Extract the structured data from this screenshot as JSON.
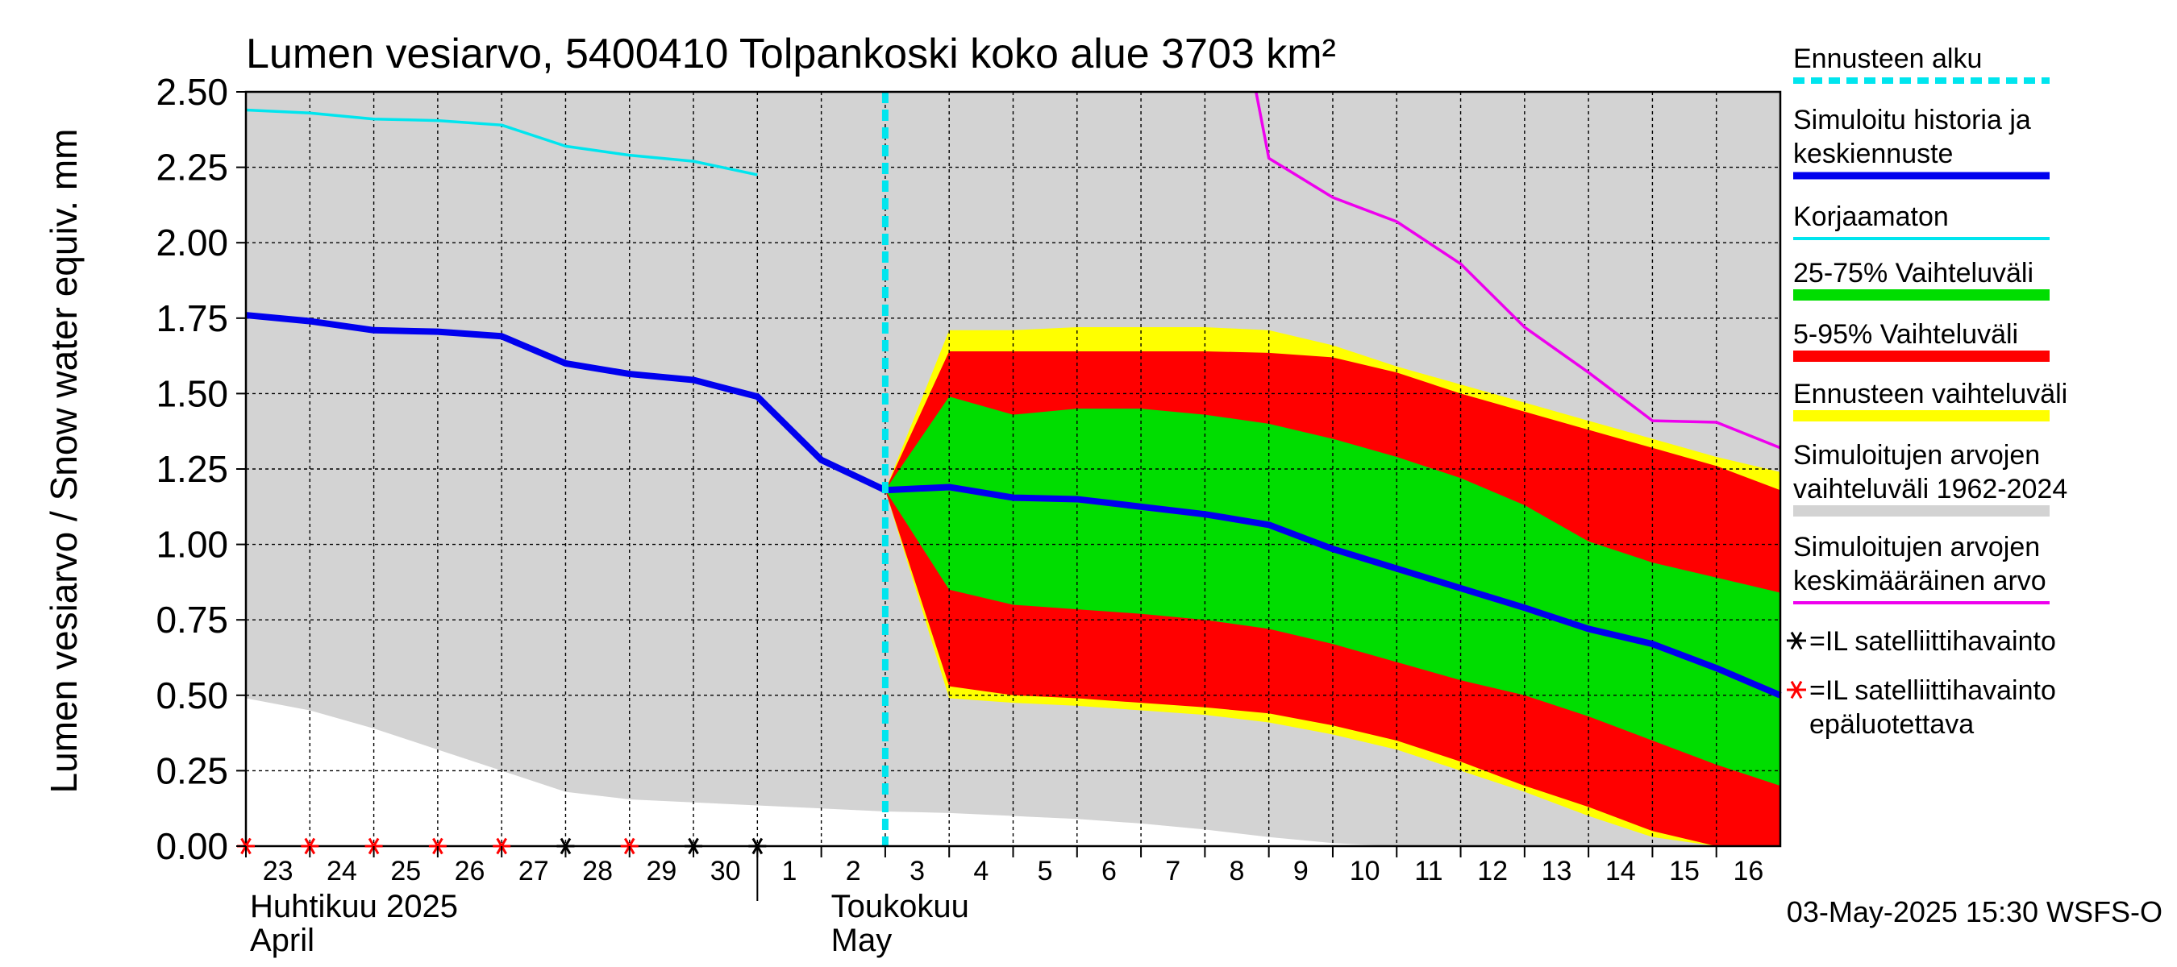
{
  "chart_data": {
    "type": "area",
    "title": "Lumen vesiarvo, 5400410 Tolpankoski koko alue 3703 km²",
    "ylabel": "Lumen vesiarvo / Snow water equiv.    mm",
    "ylim": [
      0,
      2.5
    ],
    "y_ticks": [
      "0.00",
      "0.25",
      "0.50",
      "0.75",
      "1.00",
      "1.25",
      "1.50",
      "1.75",
      "2.00",
      "2.25",
      "2.50"
    ],
    "x_tick_labels": [
      "23",
      "24",
      "25",
      "26",
      "27",
      "28",
      "29",
      "30",
      "1",
      "2",
      "3",
      "4",
      "5",
      "6",
      "7",
      "8",
      "9",
      "10",
      "11",
      "12",
      "13",
      "14",
      "15",
      "16"
    ],
    "month_labels": [
      {
        "line1": "Huhtikuu  2025",
        "line2": "April"
      },
      {
        "line1": "Toukokuu",
        "line2": "May"
      }
    ],
    "forecast_start_day": 10,
    "grid": true,
    "timestamp": "03-May-2025 15:30 WSFS-O",
    "colors": {
      "history_range": "#d3d3d3",
      "forecast_range": "#ffff00",
      "range_5_95": "#ff0000",
      "range_25_75": "#00dd00",
      "simulated": "#0000ee",
      "uncorrected": "#00e5ee",
      "mean": "#ee00ee",
      "forecast_start": "#00e5ee"
    },
    "legend": [
      {
        "lines": [
          "Ennusteen alku"
        ],
        "color": "#00e5ee",
        "style": "dashed"
      },
      {
        "lines": [
          "Simuloitu historia ja",
          "keskiennuste"
        ],
        "color": "#0000ee",
        "style": "thick"
      },
      {
        "lines": [
          "Korjaamaton"
        ],
        "color": "#00e5ee",
        "style": "line"
      },
      {
        "lines": [
          "25-75% Vaihteluväli"
        ],
        "color": "#00dd00",
        "style": "band"
      },
      {
        "lines": [
          "5-95% Vaihteluväli"
        ],
        "color": "#ff0000",
        "style": "band"
      },
      {
        "lines": [
          "Ennusteen vaihteluväli"
        ],
        "color": "#ffff00",
        "style": "band"
      },
      {
        "lines": [
          "Simuloitujen arvojen",
          "vaihteluväli 1962-2024"
        ],
        "color": "#d3d3d3",
        "style": "band"
      },
      {
        "lines": [
          "Simuloitujen arvojen",
          "keskimääräinen arvo"
        ],
        "color": "#ee00ee",
        "style": "line"
      },
      {
        "lines": [
          "=IL satelliittihavainto"
        ],
        "color": "#000000",
        "style": "marker"
      },
      {
        "lines": [
          "=IL satelliittihavainto",
          "epäluotettava"
        ],
        "color": "#ff0000",
        "style": "marker"
      }
    ],
    "series": [
      {
        "name": "Simuloitu historia ja keskiennuste",
        "x": [
          0,
          1,
          2,
          3,
          4,
          5,
          6,
          7,
          8,
          9,
          10,
          11,
          12,
          13,
          14,
          15,
          16,
          17,
          18,
          19,
          20,
          21,
          22,
          23,
          24
        ],
        "y": [
          1.76,
          1.74,
          1.71,
          1.705,
          1.69,
          1.6,
          1.565,
          1.545,
          1.49,
          1.28,
          1.18,
          1.19,
          1.155,
          1.15,
          1.125,
          1.1,
          1.065,
          0.985,
          0.92,
          0.855,
          0.79,
          0.72,
          0.67,
          0.59,
          0.5
        ]
      },
      {
        "name": "Korjaamaton",
        "x": [
          0,
          1,
          2,
          3,
          4,
          5,
          6,
          7,
          8
        ],
        "y": [
          2.44,
          2.43,
          2.41,
          2.405,
          2.39,
          2.32,
          2.29,
          2.27,
          2.225
        ]
      },
      {
        "name": "Simuloitujen arvojen keskimääräinen arvo",
        "x": [
          15.8,
          16,
          17,
          18,
          19,
          20,
          21,
          22,
          23,
          24
        ],
        "y": [
          2.5,
          2.28,
          2.15,
          2.07,
          1.93,
          1.72,
          1.57,
          1.41,
          1.405,
          1.32
        ]
      }
    ],
    "bands": [
      {
        "name": "Simuloitujen arvojen vaihteluväli 1962-2024",
        "x": [
          0,
          1,
          2,
          3,
          4,
          5,
          6,
          7,
          8,
          9,
          10,
          11,
          12,
          13,
          14,
          15,
          16,
          17,
          18,
          19,
          20,
          21,
          22,
          23,
          24
        ],
        "lower": [
          0.49,
          0.45,
          0.39,
          0.32,
          0.25,
          0.18,
          0.155,
          0.145,
          0.135,
          0.125,
          0.115,
          0.11,
          0.1,
          0.09,
          0.075,
          0.055,
          0.03,
          0.01,
          0,
          0,
          0,
          0,
          0,
          0,
          0
        ],
        "upper": [
          2.5,
          2.5,
          2.5,
          2.5,
          2.5,
          2.5,
          2.5,
          2.5,
          2.5,
          2.5,
          2.5,
          2.5,
          2.5,
          2.5,
          2.5,
          2.5,
          2.5,
          2.5,
          2.5,
          2.5,
          2.5,
          2.5,
          2.5,
          2.5,
          2.5
        ]
      },
      {
        "name": "Ennusteen vaihteluväli",
        "x": [
          10,
          11,
          12,
          13,
          14,
          15,
          16,
          17,
          18,
          19,
          20,
          21,
          22,
          23,
          24
        ],
        "lower": [
          1.18,
          0.49,
          0.475,
          0.465,
          0.45,
          0.435,
          0.41,
          0.37,
          0.32,
          0.25,
          0.18,
          0.1,
          0.03,
          0,
          0
        ],
        "upper": [
          1.18,
          1.71,
          1.71,
          1.72,
          1.72,
          1.72,
          1.71,
          1.66,
          1.59,
          1.53,
          1.47,
          1.41,
          1.35,
          1.29,
          1.24
        ]
      },
      {
        "name": "5-95% Vaihteluväli",
        "x": [
          10,
          11,
          12,
          13,
          14,
          15,
          16,
          17,
          18,
          19,
          20,
          21,
          22,
          23,
          24
        ],
        "lower": [
          1.18,
          0.53,
          0.5,
          0.49,
          0.475,
          0.46,
          0.44,
          0.4,
          0.35,
          0.28,
          0.2,
          0.13,
          0.05,
          0,
          0
        ],
        "upper": [
          1.18,
          1.64,
          1.64,
          1.64,
          1.64,
          1.64,
          1.635,
          1.62,
          1.57,
          1.5,
          1.44,
          1.38,
          1.32,
          1.26,
          1.18
        ]
      },
      {
        "name": "25-75% Vaihteluväli",
        "x": [
          10,
          11,
          12,
          13,
          14,
          15,
          16,
          17,
          18,
          19,
          20,
          21,
          22,
          23,
          24
        ],
        "lower": [
          1.18,
          0.85,
          0.8,
          0.785,
          0.77,
          0.75,
          0.72,
          0.67,
          0.61,
          0.55,
          0.5,
          0.43,
          0.35,
          0.27,
          0.2
        ],
        "upper": [
          1.18,
          1.49,
          1.43,
          1.45,
          1.45,
          1.43,
          1.4,
          1.35,
          1.29,
          1.22,
          1.13,
          1.01,
          0.94,
          0.89,
          0.84
        ]
      }
    ],
    "observations": [
      {
        "x": 0,
        "type": "unreliable"
      },
      {
        "x": 1,
        "type": "unreliable"
      },
      {
        "x": 2,
        "type": "unreliable"
      },
      {
        "x": 3,
        "type": "unreliable"
      },
      {
        "x": 4,
        "type": "unreliable"
      },
      {
        "x": 5,
        "type": "reliable"
      },
      {
        "x": 6,
        "type": "unreliable"
      },
      {
        "x": 7,
        "type": "reliable"
      },
      {
        "x": 8,
        "type": "reliable"
      }
    ]
  }
}
